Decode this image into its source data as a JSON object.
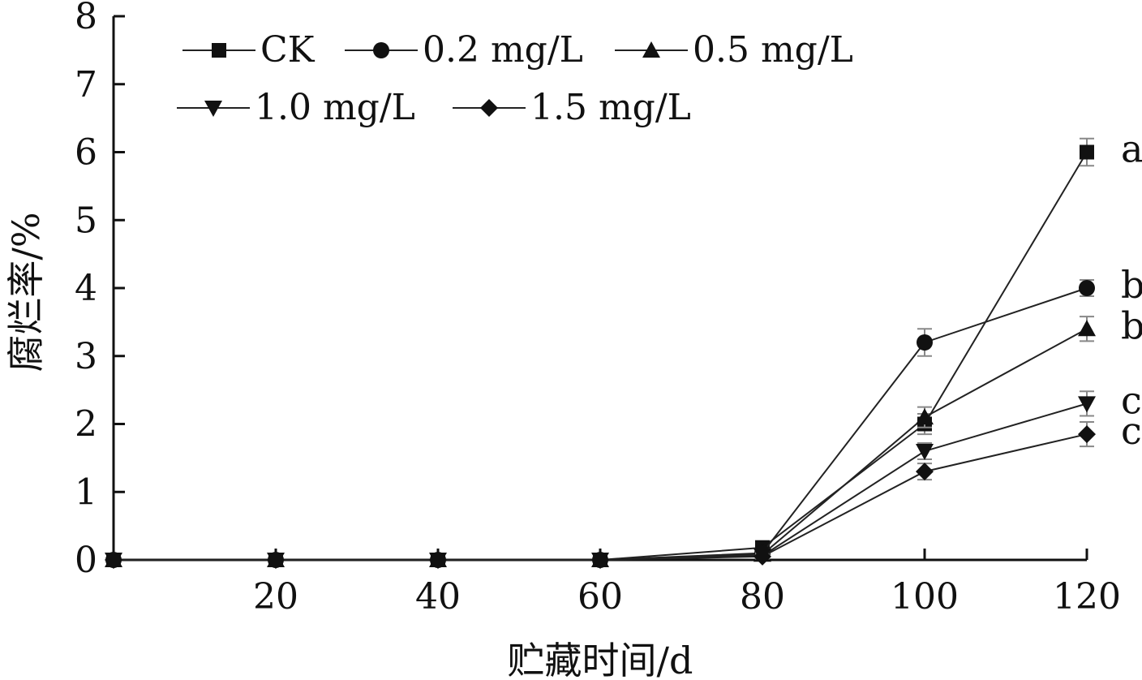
{
  "chart_data": {
    "type": "line",
    "xlabel": "贮藏时间/d",
    "ylabel": "腐烂率/%",
    "xlim": [
      0,
      120
    ],
    "ylim": [
      0,
      8
    ],
    "x_ticks": [
      20,
      40,
      60,
      80,
      100,
      120
    ],
    "x_tick_labels": [
      "20",
      "40",
      "60",
      "80",
      "100",
      "120"
    ],
    "y_ticks": [
      0,
      1,
      2,
      3,
      4,
      5,
      6,
      7,
      8
    ],
    "y_tick_labels": [
      "0",
      "1",
      "2",
      "3",
      "4",
      "5",
      "6",
      "7",
      "8"
    ],
    "grid": false,
    "legend_position": "top-left",
    "x": [
      0,
      20,
      40,
      60,
      80,
      100,
      120
    ],
    "series": [
      {
        "name": "CK",
        "marker": "square",
        "values": [
          0,
          0,
          0,
          0,
          0.18,
          2.0,
          6.0
        ],
        "errors": [
          0,
          0,
          0,
          0,
          0.1,
          0.15,
          0.2
        ]
      },
      {
        "name": "0.2 mg/L",
        "marker": "circle",
        "values": [
          0,
          0,
          0,
          0,
          0.1,
          3.2,
          4.0
        ],
        "errors": [
          0,
          0,
          0,
          0,
          0.05,
          0.2,
          0.12
        ]
      },
      {
        "name": "0.5 mg/L",
        "marker": "triangle-up",
        "values": [
          0,
          0,
          0,
          0,
          0.08,
          2.1,
          3.4
        ],
        "errors": [
          0,
          0,
          0,
          0,
          0.05,
          0.15,
          0.18
        ]
      },
      {
        "name": "1.0 mg/L",
        "marker": "triangle-down",
        "values": [
          0,
          0,
          0,
          0,
          0.06,
          1.6,
          2.3
        ],
        "errors": [
          0,
          0,
          0,
          0,
          0.04,
          0.12,
          0.18
        ]
      },
      {
        "name": "1.5 mg/L",
        "marker": "diamond",
        "values": [
          0,
          0,
          0,
          0,
          0.05,
          1.3,
          1.85
        ],
        "errors": [
          0,
          0,
          0,
          0,
          0.03,
          0.12,
          0.18
        ]
      }
    ],
    "annotations": [
      {
        "text": "a",
        "x": 120,
        "y": 6.0
      },
      {
        "text": "b",
        "x": 120,
        "y": 4.0
      },
      {
        "text": "b",
        "x": 120,
        "y": 3.4
      },
      {
        "text": "c",
        "x": 120,
        "y": 2.3
      },
      {
        "text": "c",
        "x": 120,
        "y": 1.85
      }
    ],
    "colors": {
      "line": "#222222",
      "marker": "#111111",
      "error_bar": "#888888"
    }
  }
}
